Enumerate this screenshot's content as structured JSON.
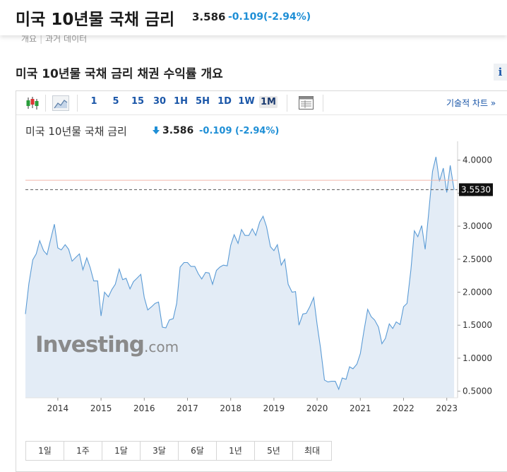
{
  "header": {
    "title": "미국 10년물 국채 금리",
    "price": "3.586",
    "change": "-0.109",
    "change_pct": "(-2.94%)"
  },
  "subtabs": [
    "개요",
    "과거 데이터"
  ],
  "section_title": "미국 10년물 국채 금리  채권 수익률 개요",
  "info_icon": "i",
  "toolbar": {
    "icons": [
      "candlestick-icon",
      "area-chart-icon",
      "table-icon"
    ],
    "intervals": [
      "1",
      "5",
      "15",
      "30",
      "1H",
      "5H",
      "1D",
      "1W",
      "1M"
    ],
    "active_interval": "1M",
    "tech_chart_label": "기술적 차트 »"
  },
  "legend": {
    "name": "미국 10년물 국채 금리",
    "arrow": "down-arrow-icon",
    "price": "3.586",
    "change": "-0.109",
    "change_pct": "(-2.94%)"
  },
  "watermark": {
    "main": "Investing",
    "suffix": ".com"
  },
  "ranges": [
    "1일",
    "1주",
    "1달",
    "3달",
    "6달",
    "1년",
    "5년",
    "최대"
  ],
  "colors": {
    "line": "#5b9bd5",
    "area": "#e3ecf6",
    "up_down": "#1f8fd6",
    "ref_line": "#f0b8ab",
    "last_label_bg": "#111111"
  },
  "chart_data": {
    "type": "area",
    "x_labels": [
      "2014",
      "2015",
      "2016",
      "2017",
      "2018",
      "2019",
      "2020",
      "2021",
      "2022",
      "2023"
    ],
    "y_ticks": [
      "4.0000",
      "3.5000",
      "3.0000",
      "2.5000",
      "2.0000",
      "1.5000",
      "1.0000",
      "0.5000"
    ],
    "ylim": [
      0.4,
      4.05
    ],
    "xlim": [
      2013.25,
      2023.25
    ],
    "last_value_label": "3.5530",
    "last_value": 3.553,
    "ref_value": 3.695,
    "grid": false,
    "series": [
      {
        "x": [
          2013.25,
          2013.33,
          2013.42,
          2013.5,
          2013.58,
          2013.67,
          2013.75,
          2013.83,
          2013.92,
          2014.0,
          2014.08,
          2014.17,
          2014.25,
          2014.33,
          2014.42,
          2014.5,
          2014.58,
          2014.67,
          2014.75,
          2014.83,
          2014.92,
          2015.0,
          2015.08,
          2015.17,
          2015.25,
          2015.33,
          2015.42,
          2015.5,
          2015.58,
          2015.67,
          2015.75,
          2015.83,
          2015.92,
          2016.0,
          2016.08,
          2016.17,
          2016.25,
          2016.33,
          2016.42,
          2016.5,
          2016.58,
          2016.67,
          2016.75,
          2016.83,
          2016.92,
          2017.0,
          2017.08,
          2017.17,
          2017.25,
          2017.33,
          2017.42,
          2017.5,
          2017.58,
          2017.67,
          2017.75,
          2017.83,
          2017.92,
          2018.0,
          2018.08,
          2018.17,
          2018.25,
          2018.33,
          2018.42,
          2018.5,
          2018.58,
          2018.67,
          2018.75,
          2018.83,
          2018.92,
          2019.0,
          2019.08,
          2019.17,
          2019.25,
          2019.33,
          2019.42,
          2019.5,
          2019.58,
          2019.67,
          2019.75,
          2019.83,
          2019.92,
          2020.0,
          2020.08,
          2020.17,
          2020.25,
          2020.33,
          2020.42,
          2020.5,
          2020.58,
          2020.67,
          2020.75,
          2020.83,
          2020.92,
          2021.0,
          2021.08,
          2021.17,
          2021.25,
          2021.33,
          2021.42,
          2021.5,
          2021.58,
          2021.67,
          2021.75,
          2021.83,
          2021.92,
          2022.0,
          2022.08,
          2022.17,
          2022.25,
          2022.33,
          2022.42,
          2022.5,
          2022.58,
          2022.67,
          2022.75,
          2022.83,
          2022.92,
          2023.0,
          2023.08,
          2023.17
        ],
        "y": [
          1.67,
          2.13,
          2.49,
          2.58,
          2.78,
          2.63,
          2.57,
          2.79,
          3.03,
          2.67,
          2.64,
          2.72,
          2.65,
          2.47,
          2.53,
          2.58,
          2.34,
          2.52,
          2.37,
          2.17,
          2.17,
          1.64,
          2.0,
          1.93,
          2.04,
          2.12,
          2.35,
          2.19,
          2.21,
          2.05,
          2.16,
          2.21,
          2.27,
          1.92,
          1.73,
          1.78,
          1.83,
          1.85,
          1.47,
          1.46,
          1.58,
          1.6,
          1.83,
          2.38,
          2.45,
          2.45,
          2.39,
          2.39,
          2.28,
          2.2,
          2.3,
          2.29,
          2.12,
          2.33,
          2.38,
          2.41,
          2.4,
          2.71,
          2.87,
          2.74,
          2.95,
          2.86,
          2.86,
          2.96,
          2.86,
          3.06,
          3.15,
          2.99,
          2.69,
          2.63,
          2.72,
          2.41,
          2.5,
          2.12,
          2.0,
          2.01,
          1.5,
          1.67,
          1.68,
          1.78,
          1.92,
          1.51,
          1.15,
          0.67,
          0.64,
          0.65,
          0.65,
          0.53,
          0.7,
          0.68,
          0.87,
          0.84,
          0.91,
          1.07,
          1.4,
          1.74,
          1.63,
          1.58,
          1.47,
          1.22,
          1.3,
          1.52,
          1.45,
          1.55,
          1.51,
          1.78,
          1.83,
          2.34,
          2.93,
          2.84,
          3.01,
          2.65,
          3.19,
          3.83,
          4.05,
          3.68,
          3.88,
          3.51,
          3.92,
          3.55
        ]
      }
    ]
  }
}
